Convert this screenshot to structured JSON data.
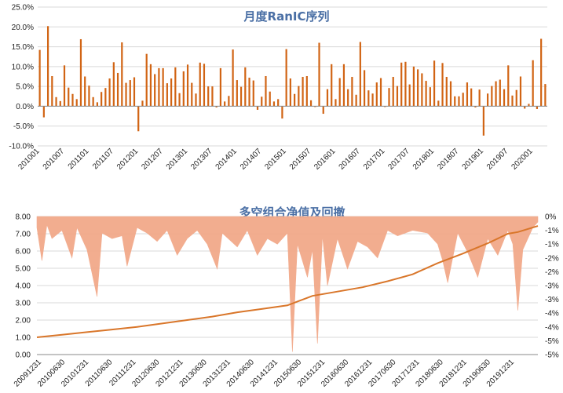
{
  "colors": {
    "bar": "#d16414",
    "area": "#f2a98a",
    "line": "#d9762a",
    "grid": "#d9d9d9",
    "axis": "#888888",
    "text": "#222222"
  },
  "chart_data": [
    {
      "type": "bar",
      "title": "月度RanIC序列",
      "ylim": [
        -10,
        25
      ],
      "ytick_labels": [
        "-10.0%",
        "-5.0%",
        "0.0%",
        "5.0%",
        "10.0%",
        "15.0%",
        "20.0%",
        "25.0%"
      ],
      "xtick_labels": [
        "201001",
        "201007",
        "201101",
        "201107",
        "201201",
        "201207",
        "201301",
        "201307",
        "201401",
        "201407",
        "201501",
        "201507",
        "201601",
        "201607",
        "201701",
        "201707",
        "201801",
        "201807",
        "201901",
        "201907",
        "202001"
      ],
      "grid": "horizontal",
      "series": [
        {
          "values": [
            14.2,
            -2.8,
            20.2,
            7.6,
            2.3,
            1.3,
            10.3,
            4.7,
            3.1,
            1.8,
            16.9,
            7.5,
            5.2,
            2.3,
            1.0,
            3.6,
            4.6,
            7.0,
            11.1,
            8.4,
            16.1,
            5.9,
            6.6,
            7.3,
            -6.3,
            1.4,
            13.2,
            10.6,
            8.1,
            9.6,
            9.6,
            5.8,
            7.0,
            9.8,
            3.3,
            8.8,
            10.5,
            5.9,
            3.2,
            11.0,
            10.7,
            5.0,
            5.0,
            -0.3,
            9.6,
            1.2,
            2.6,
            14.3,
            6.6,
            4.9,
            9.8,
            7.2,
            6.5,
            -0.9,
            2.4,
            7.6,
            3.7,
            1.2,
            1.8,
            -3.1,
            14.4,
            7.0,
            3.1,
            5.1,
            7.4,
            7.6,
            1.5,
            -0.2,
            16.0,
            -1.9,
            4.3,
            10.6,
            1.8,
            7.1,
            10.6,
            4.3,
            7.4,
            2.9,
            16.2,
            9.1,
            4.0,
            3.2,
            6.0,
            7.1,
            -0.2,
            4.6,
            7.4,
            5.1,
            11.0,
            11.2,
            5.5,
            10.0,
            9.3,
            8.3,
            6.4,
            4.8,
            11.5,
            1.4,
            10.9,
            7.4,
            6.3,
            2.5,
            2.5,
            3.4,
            6.0,
            4.5,
            -0.3,
            4.2,
            -7.4,
            3.2,
            5.1,
            6.3,
            6.7,
            4.3,
            10.3,
            2.7,
            4.1,
            7.5,
            -0.6,
            0.6,
            11.6,
            -0.7,
            17.0,
            5.6
          ]
        }
      ]
    },
    {
      "type": "area",
      "title": "多空组合净值及回撤",
      "ylim": [
        0,
        8
      ],
      "ytick_labels": [
        "0.00",
        "1.00",
        "2.00",
        "3.00",
        "4.00",
        "5.00",
        "6.00",
        "7.00",
        "8.00"
      ],
      "y2lim": [
        -5,
        0
      ],
      "y2tick_labels": [
        "0%",
        "-1%",
        "-1%",
        "-2%",
        "-2%",
        "-3%",
        "-3%",
        "-4%",
        "-4%",
        "-5%",
        "-5%"
      ],
      "xtick_labels": [
        "20091231",
        "20100630",
        "20101231",
        "20110630",
        "20111231",
        "20120630",
        "20121231",
        "20130630",
        "20131231",
        "20140630",
        "20141231",
        "20150630",
        "20151231",
        "20160630",
        "20161231",
        "20170630",
        "20171231",
        "20180630",
        "20181231",
        "20190630",
        "20191231"
      ],
      "grid": "horizontal",
      "series": [
        {
          "kind": "line",
          "axis": "left",
          "x": [
            0,
            0.05,
            0.1,
            0.15,
            0.2,
            0.25,
            0.3,
            0.35,
            0.4,
            0.45,
            0.5,
            0.55,
            0.6,
            0.65,
            0.7,
            0.75,
            0.8,
            0.85,
            0.9,
            0.94,
            0.96,
            1.0
          ],
          "values": [
            1.0,
            1.15,
            1.3,
            1.45,
            1.6,
            1.8,
            2.0,
            2.2,
            2.45,
            2.65,
            2.85,
            3.4,
            3.65,
            3.9,
            4.25,
            4.65,
            5.3,
            5.85,
            6.45,
            7.0,
            7.1,
            7.45
          ]
        },
        {
          "kind": "area",
          "axis": "right",
          "x": [
            0,
            0.01,
            0.02,
            0.03,
            0.05,
            0.07,
            0.08,
            0.1,
            0.12,
            0.13,
            0.15,
            0.17,
            0.18,
            0.2,
            0.22,
            0.24,
            0.26,
            0.28,
            0.3,
            0.32,
            0.34,
            0.36,
            0.37,
            0.4,
            0.42,
            0.44,
            0.46,
            0.48,
            0.5,
            0.51,
            0.52,
            0.54,
            0.55,
            0.56,
            0.57,
            0.58,
            0.6,
            0.62,
            0.64,
            0.66,
            0.68,
            0.7,
            0.72,
            0.75,
            0.78,
            0.8,
            0.81,
            0.82,
            0.84,
            0.86,
            0.88,
            0.9,
            0.92,
            0.94,
            0.95,
            0.96,
            0.97,
            0.98,
            0.99,
            1.0
          ],
          "values": [
            -0.4,
            -1.6,
            -0.3,
            -0.8,
            -0.5,
            -1.5,
            -0.4,
            -1.2,
            -2.9,
            -0.6,
            -0.8,
            -0.7,
            -1.8,
            -0.4,
            -0.6,
            -0.9,
            -0.5,
            -1.4,
            -0.8,
            -0.5,
            -1.0,
            -1.9,
            -0.6,
            -1.1,
            -0.5,
            -1.4,
            -0.8,
            -1.0,
            -0.6,
            -4.9,
            -1.0,
            -2.2,
            -1.2,
            -4.6,
            -0.7,
            -2.5,
            -0.8,
            -1.9,
            -0.9,
            -1.1,
            -1.5,
            -0.5,
            -0.7,
            -0.5,
            -0.6,
            -1.0,
            -1.6,
            -2.4,
            -0.6,
            -1.3,
            -2.2,
            -0.8,
            -1.4,
            -0.5,
            -1.0,
            -3.4,
            -1.2,
            -0.8,
            -0.4,
            -0.2
          ]
        }
      ]
    }
  ]
}
